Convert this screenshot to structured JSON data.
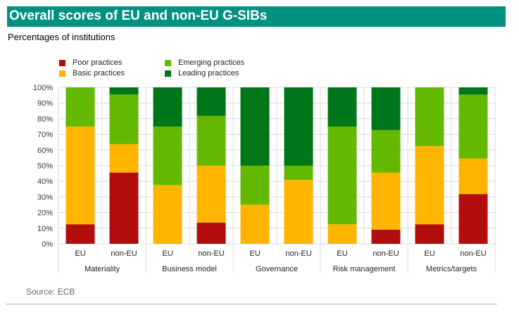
{
  "header": {
    "title": "Overall scores of EU and non-EU G-SIBs",
    "subtitle": "Percentages of institutions"
  },
  "footer": {
    "source": "Source: ECB"
  },
  "chart_data": {
    "type": "bar",
    "stacked": true,
    "title": "Overall scores of EU and non-EU G-SIBs",
    "subtitle": "Percentages of institutions",
    "xlabel": "",
    "ylabel": "",
    "ylim": [
      0,
      100
    ],
    "y_ticks": [
      "0%",
      "10%",
      "20%",
      "30%",
      "40%",
      "50%",
      "60%",
      "70%",
      "80%",
      "90%",
      "100%"
    ],
    "grid": true,
    "legend_position": "top-left",
    "groups": [
      "Materiality",
      "Business model",
      "Governance",
      "Risk management",
      "Metrics/targets"
    ],
    "subcategories": [
      "EU",
      "non-EU"
    ],
    "categories": [
      "Materiality EU",
      "Materiality non-EU",
      "Business model EU",
      "Business model non-EU",
      "Governance EU",
      "Governance non-EU",
      "Risk management EU",
      "Risk management non-EU",
      "Metrics/targets EU",
      "Metrics/targets non-EU"
    ],
    "series": [
      {
        "name": "Poor practices",
        "color": "#b30c0c",
        "values": [
          12.5,
          45.5,
          0,
          13.6,
          0,
          0,
          0,
          9.1,
          12.5,
          31.8
        ]
      },
      {
        "name": "Basic practices",
        "color": "#ffb400",
        "values": [
          62.5,
          18.2,
          37.5,
          36.4,
          25,
          40.9,
          12.5,
          36.4,
          50,
          22.7
        ]
      },
      {
        "name": "Emerging practices",
        "color": "#65b800",
        "values": [
          25,
          31.8,
          37.5,
          31.8,
          25,
          9.1,
          62.5,
          27.2,
          37.5,
          40.9
        ]
      },
      {
        "name": "Leading practices",
        "color": "#00761a",
        "values": [
          0,
          4.5,
          25,
          18.2,
          50,
          50,
          25,
          27.3,
          0,
          4.6
        ]
      }
    ]
  }
}
